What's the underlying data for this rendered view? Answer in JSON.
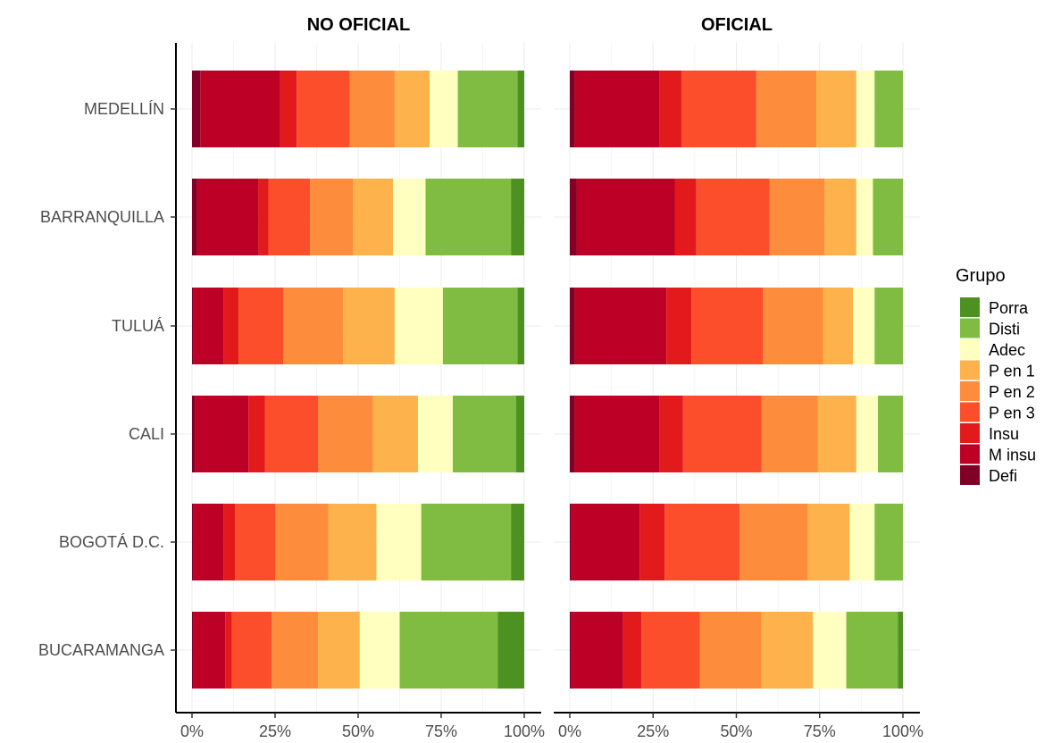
{
  "chart_data": {
    "type": "bar",
    "orientation": "horizontal",
    "stacked": "percent",
    "facets": [
      "NO OFICIAL",
      "OFICIAL"
    ],
    "categories": [
      "MEDELLÍN",
      "BARRANQUILLA",
      "TULUÁ",
      "CALI",
      "BOGOTÁ D.C.",
      "BUCARAMANGA"
    ],
    "x_ticks": [
      "0%",
      "25%",
      "50%",
      "75%",
      "100%"
    ],
    "xlim": [
      0,
      100
    ],
    "grid": true,
    "legend_title": "Grupo",
    "legend_position": "right",
    "legend_entries": [
      "Porra",
      "Disti",
      "Adec",
      "P en 1",
      "P en 2",
      "P en 3",
      "Insu",
      "M insu",
      "Defi"
    ],
    "stack_order": [
      "Defi",
      "M insu",
      "Insu",
      "P en 3",
      "P en 2",
      "P en 1",
      "Adec",
      "Disti",
      "Porra"
    ],
    "colors": {
      "Defi": "#800026",
      "M insu": "#bd0026",
      "Insu": "#e31a1c",
      "P en 3": "#fc4e2a",
      "P en 2": "#fd8d3c",
      "P en 1": "#feb24c",
      "Adec": "#ffffbf",
      "Disti": "#7fbc41",
      "Porra": "#4d9221"
    },
    "series": {
      "NO OFICIAL": {
        "MEDELLÍN": {
          "Defi": 2.5,
          "M insu": 24.0,
          "Insu": 5.0,
          "P en 3": 16.0,
          "P en 2": 13.5,
          "P en 1": 10.5,
          "Adec": 8.5,
          "Disti": 18.0,
          "Porra": 2.0
        },
        "BARRANQUILLA": {
          "Defi": 1.5,
          "M insu": 18.5,
          "Insu": 3.0,
          "P en 3": 12.5,
          "P en 2": 13.0,
          "P en 1": 12.0,
          "Adec": 9.8,
          "Disti": 25.7,
          "Porra": 4.0
        },
        "TULUÁ": {
          "Defi": 0.5,
          "M insu": 9.0,
          "Insu": 4.5,
          "P en 3": 13.5,
          "P en 2": 18.0,
          "P en 1": 15.5,
          "Adec": 14.5,
          "Disti": 22.5,
          "Porra": 2.0
        },
        "CALI": {
          "Defi": 1.0,
          "M insu": 16.0,
          "Insu": 5.0,
          "P en 3": 16.0,
          "P en 2": 16.5,
          "P en 1": 13.5,
          "Adec": 10.5,
          "Disti": 19.0,
          "Porra": 2.5
        },
        "BOGOTÁ D.C.": {
          "Defi": 0.5,
          "M insu": 9.0,
          "Insu": 3.5,
          "P en 3": 12.0,
          "P en 2": 16.0,
          "P en 1": 14.5,
          "Adec": 13.5,
          "Disti": 27.0,
          "Porra": 4.0
        },
        "BUCARAMANGA": {
          "Defi": 0.5,
          "M insu": 9.5,
          "Insu": 2.0,
          "P en 3": 12.0,
          "P en 2": 14.0,
          "P en 1": 12.5,
          "Adec": 12.0,
          "Disti": 29.5,
          "Porra": 8.0
        }
      },
      "OFICIAL": {
        "MEDELLÍN": {
          "Defi": 1.5,
          "M insu": 25.5,
          "Insu": 6.5,
          "P en 3": 22.5,
          "P en 2": 18.0,
          "P en 1": 12.0,
          "Adec": 5.5,
          "Disti": 8.5,
          "Porra": 0.0
        },
        "BARRANQUILLA": {
          "Defi": 2.0,
          "M insu": 29.5,
          "Insu": 6.5,
          "P en 3": 22.0,
          "P en 2": 16.5,
          "P en 1": 9.5,
          "Adec": 5.0,
          "Disti": 9.0,
          "Porra": 0.0
        },
        "TULUÁ": {
          "Defi": 1.5,
          "M insu": 27.5,
          "Insu": 7.5,
          "P en 3": 21.5,
          "P en 2": 18.0,
          "P en 1": 9.0,
          "Adec": 6.5,
          "Disti": 8.5,
          "Porra": 0.0
        },
        "CALI": {
          "Defi": 1.5,
          "M insu": 25.5,
          "Insu": 7.0,
          "P en 3": 23.5,
          "P en 2": 17.0,
          "P en 1": 11.5,
          "Adec": 6.5,
          "Disti": 7.5,
          "Porra": 0.0
        },
        "BOGOTÁ D.C.": {
          "Defi": 0.5,
          "M insu": 20.5,
          "Insu": 7.5,
          "P en 3": 22.5,
          "P en 2": 20.5,
          "P en 1": 12.5,
          "Adec": 7.5,
          "Disti": 8.5,
          "Porra": 0.0
        },
        "BUCARAMANGA": {
          "Defi": 0.5,
          "M insu": 15.5,
          "Insu": 5.5,
          "P en 3": 17.5,
          "P en 2": 18.5,
          "P en 1": 15.5,
          "Adec": 10.0,
          "Disti": 15.5,
          "Porra": 1.5
        }
      }
    }
  }
}
